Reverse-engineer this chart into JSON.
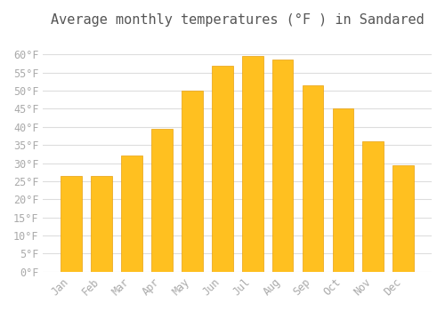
{
  "title": "Average monthly temperatures (°F ) in Sandared",
  "months": [
    "Jan",
    "Feb",
    "Mar",
    "Apr",
    "May",
    "Jun",
    "Jul",
    "Aug",
    "Sep",
    "Oct",
    "Nov",
    "Dec"
  ],
  "values": [
    26.5,
    26.5,
    32.0,
    39.5,
    50.0,
    57.0,
    59.5,
    58.5,
    51.5,
    45.0,
    36.0,
    29.5
  ],
  "bar_color": "#FFC020",
  "bar_edge_color": "#E8A010",
  "background_color": "#FFFFFF",
  "grid_color": "#DDDDDD",
  "tick_label_color": "#AAAAAA",
  "title_color": "#555555",
  "ylim": [
    0,
    65
  ],
  "yticks": [
    0,
    5,
    10,
    15,
    20,
    25,
    30,
    35,
    40,
    45,
    50,
    55,
    60
  ],
  "ytick_labels": [
    "0°F",
    "5°F",
    "10°F",
    "15°F",
    "20°F",
    "25°F",
    "30°F",
    "35°F",
    "40°F",
    "45°F",
    "50°F",
    "55°F",
    "60°F"
  ],
  "title_fontsize": 11,
  "tick_fontsize": 8.5,
  "figsize": [
    5.0,
    3.5
  ],
  "dpi": 100
}
